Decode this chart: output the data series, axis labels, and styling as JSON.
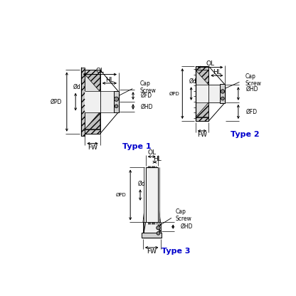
{
  "bg_color": "#ffffff",
  "line_color": "#000000",
  "type_color": "#0000cc",
  "fill_light": "#d8d8d8",
  "fill_white": "#f5f5f5",
  "fill_hatch": "#c8c8c8",
  "fill_dark": "#a0a0a0",
  "fill_mid": "#b8b8b8",
  "type1_label": "Type 1",
  "type2_label": "Type 2",
  "type3_label": "Type 3"
}
